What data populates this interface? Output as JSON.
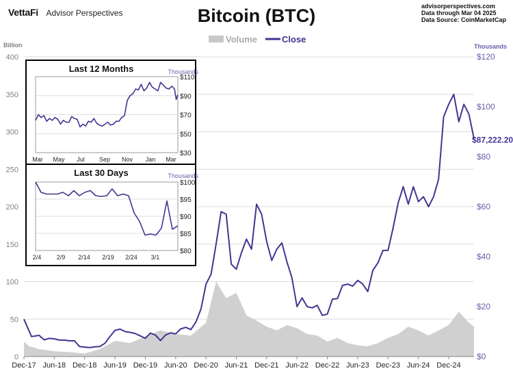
{
  "header": {
    "brand_logo": "VettaFi",
    "brand_name": "Advisor Perspectives",
    "title": "Bitcoin (BTC)",
    "source_site": "advisorperspectives.com",
    "source_date": "Data through  Mar 04 2025",
    "source_data": "Data Source:  CoinMarketCap"
  },
  "colors": {
    "close": "#3f3590",
    "volume": "#c8c8c8",
    "axis_left": "#808080",
    "axis_right": "#6a5fa8",
    "grid": "#dcdcdc"
  },
  "chart_data": [
    {
      "type": "area+line",
      "title": "Bitcoin (BTC)",
      "legend": [
        "Volume",
        "Close"
      ],
      "legend_position": "top-center",
      "y_left_label": "Billion",
      "y_left_ticks": [
        0,
        50,
        100,
        150,
        200,
        250,
        300,
        350,
        400
      ],
      "y_left_lim": [
        0,
        400
      ],
      "y_right_label": "Thousands",
      "y_right_ticks": [
        "$0",
        "$20",
        "$40",
        "$60",
        "$80",
        "$100",
        "$120"
      ],
      "y_right_lim": [
        0,
        120
      ],
      "x_ticks": [
        "Dec-17",
        "Jun-18",
        "Dec-18",
        "Jun-19",
        "Dec-19",
        "Jun-20",
        "Dec-20",
        "Jun-21",
        "Dec-21",
        "Jun-22",
        "Dec-22",
        "Jun-23",
        "Dec-23",
        "Jun-24",
        "Dec-24"
      ],
      "last_value_label": "$87,222.20",
      "series": [
        {
          "name": "Close",
          "axis": "right",
          "points": [
            [
              0,
              15
            ],
            [
              1.5,
              8.0
            ],
            [
              3,
              8.5
            ],
            [
              4,
              6.7
            ],
            [
              5,
              7.3
            ],
            [
              6,
              7.1
            ],
            [
              7,
              6.6
            ],
            [
              8,
              6.6
            ],
            [
              9,
              6.3
            ],
            [
              10,
              6.3
            ],
            [
              11,
              4.0
            ],
            [
              12,
              3.8
            ],
            [
              13,
              3.6
            ],
            [
              14,
              3.9
            ],
            [
              15,
              4.0
            ],
            [
              16,
              5.3
            ],
            [
              17,
              8.0
            ],
            [
              18,
              10.5
            ],
            [
              19,
              11.0
            ],
            [
              20,
              10.0
            ],
            [
              21,
              9.7
            ],
            [
              22,
              9.2
            ],
            [
              23,
              8.3
            ],
            [
              24,
              7.3
            ],
            [
              25,
              9.4
            ],
            [
              26,
              8.6
            ],
            [
              27,
              6.4
            ],
            [
              28,
              8.6
            ],
            [
              29,
              9.5
            ],
            [
              30,
              9.1
            ],
            [
              31,
              11.1
            ],
            [
              32,
              11.7
            ],
            [
              33,
              10.8
            ],
            [
              34,
              13.8
            ],
            [
              35,
              19.0
            ],
            [
              36,
              29.0
            ],
            [
              37,
              33.0
            ],
            [
              38,
              45.0
            ],
            [
              39,
              58.0
            ],
            [
              40,
              57.0
            ],
            [
              41,
              37.0
            ],
            [
              42,
              35.0
            ],
            [
              43,
              41.5
            ],
            [
              44,
              47.0
            ],
            [
              45,
              43.0
            ],
            [
              46,
              61.0
            ],
            [
              47,
              57.0
            ],
            [
              48,
              46.0
            ],
            [
              49,
              38.5
            ],
            [
              50,
              43.0
            ],
            [
              51,
              45.5
            ],
            [
              52,
              38.0
            ],
            [
              53,
              31.5
            ],
            [
              54,
              20.0
            ],
            [
              55,
              23.5
            ],
            [
              56,
              20.0
            ],
            [
              57,
              19.5
            ],
            [
              58,
              20.5
            ],
            [
              59,
              16.5
            ],
            [
              60,
              17.0
            ],
            [
              61,
              23.0
            ],
            [
              62,
              23.2
            ],
            [
              63,
              28.5
            ],
            [
              64,
              29.0
            ],
            [
              65,
              28.2
            ],
            [
              66,
              30.5
            ],
            [
              67,
              29.0
            ],
            [
              68,
              26.0
            ],
            [
              69,
              34.5
            ],
            [
              70,
              37.5
            ],
            [
              71,
              42.5
            ],
            [
              72,
              42.5
            ],
            [
              73,
              51.5
            ],
            [
              74,
              61.5
            ],
            [
              75,
              68.0
            ],
            [
              76,
              61.0
            ],
            [
              77,
              68.0
            ],
            [
              78,
              62.0
            ],
            [
              79,
              64.0
            ],
            [
              80,
              60.0
            ],
            [
              81,
              64.0
            ],
            [
              82,
              71.0
            ],
            [
              83,
              96.0
            ],
            [
              84,
              101.0
            ],
            [
              85,
              105.0
            ],
            [
              86,
              94.0
            ],
            [
              87,
              101.0
            ],
            [
              88,
              97.0
            ],
            [
              89,
              87.2
            ]
          ],
          "x_note": "month index from Dec-17 (0) to Mar-25 (89)"
        },
        {
          "name": "Volume",
          "axis": "left",
          "points": [
            [
              0,
              20
            ],
            [
              1,
              14
            ],
            [
              3,
              10
            ],
            [
              6,
              7
            ],
            [
              9,
              6
            ],
            [
              12,
              4
            ],
            [
              15,
              10
            ],
            [
              18,
              21
            ],
            [
              21,
              18
            ],
            [
              24,
              27
            ],
            [
              27,
              35
            ],
            [
              30,
              30
            ],
            [
              33,
              28
            ],
            [
              36,
              45
            ],
            [
              38,
              100
            ],
            [
              40,
              78
            ],
            [
              42,
              85
            ],
            [
              44,
              55
            ],
            [
              46,
              48
            ],
            [
              48,
              40
            ],
            [
              50,
              35
            ],
            [
              52,
              42
            ],
            [
              54,
              38
            ],
            [
              56,
              30
            ],
            [
              58,
              28
            ],
            [
              60,
              20
            ],
            [
              62,
              25
            ],
            [
              64,
              18
            ],
            [
              66,
              15
            ],
            [
              68,
              14
            ],
            [
              70,
              18
            ],
            [
              72,
              25
            ],
            [
              74,
              30
            ],
            [
              76,
              40
            ],
            [
              78,
              35
            ],
            [
              80,
              28
            ],
            [
              82,
              35
            ],
            [
              84,
              42
            ],
            [
              86,
              60
            ],
            [
              88,
              45
            ],
            [
              89,
              40
            ]
          ]
        }
      ]
    },
    {
      "type": "line",
      "title": "Last 12 Months",
      "y_label": "Thousands",
      "y_ticks": [
        "$110",
        "$90",
        "$70",
        "$50",
        "$30"
      ],
      "y_lim": [
        30,
        110
      ],
      "x_ticks": [
        "Mar",
        "May",
        "Jul",
        "Sep",
        "Nov",
        "Jan",
        "Mar"
      ],
      "points": [
        [
          0,
          64
        ],
        [
          0.5,
          70
        ],
        [
          1,
          67
        ],
        [
          1.5,
          69
        ],
        [
          2,
          63
        ],
        [
          2.5,
          66
        ],
        [
          3,
          64
        ],
        [
          3.5,
          67
        ],
        [
          4,
          65
        ],
        [
          4.5,
          60
        ],
        [
          5,
          64
        ],
        [
          5.5,
          62
        ],
        [
          6,
          62
        ],
        [
          6.5,
          68
        ],
        [
          7,
          66
        ],
        [
          7.5,
          65
        ],
        [
          8,
          57
        ],
        [
          8.5,
          60
        ],
        [
          9,
          58
        ],
        [
          9.5,
          63
        ],
        [
          10,
          62
        ],
        [
          10.5,
          66
        ],
        [
          11,
          61
        ],
        [
          11.5,
          59
        ],
        [
          12,
          58
        ],
        [
          12.5,
          60
        ],
        [
          13,
          62
        ],
        [
          13.5,
          59
        ],
        [
          14,
          60
        ],
        [
          14.5,
          63
        ],
        [
          15,
          63
        ],
        [
          15.5,
          67
        ],
        [
          16,
          69
        ],
        [
          16.5,
          85
        ],
        [
          17,
          90
        ],
        [
          17.5,
          92
        ],
        [
          18,
          97
        ],
        [
          18.5,
          96
        ],
        [
          19,
          102
        ],
        [
          19.5,
          95
        ],
        [
          20,
          98
        ],
        [
          20.5,
          104
        ],
        [
          21,
          99
        ],
        [
          21.5,
          97
        ],
        [
          22,
          95
        ],
        [
          22.5,
          104
        ],
        [
          23,
          101
        ],
        [
          23.5,
          98
        ],
        [
          24,
          97
        ],
        [
          24.5,
          100
        ],
        [
          25,
          97
        ],
        [
          25.3,
          86
        ],
        [
          25.6,
          91
        ]
      ],
      "x_note": "half-month index from Mar-24 (0) to Mar-25 (~25.6)"
    },
    {
      "type": "line",
      "title": "Last 30 Days",
      "y_label": "Thousands",
      "y_ticks": [
        "$100",
        "$95",
        "$90",
        "$85",
        "$80"
      ],
      "y_lim": [
        80,
        100
      ],
      "x_ticks": [
        "2/4",
        "2/9",
        "2/14",
        "2/19",
        "2/24",
        "3/1"
      ],
      "points": [
        [
          0,
          100
        ],
        [
          1,
          97
        ],
        [
          2,
          96.5
        ],
        [
          3,
          96.5
        ],
        [
          4,
          96.5
        ],
        [
          5,
          97
        ],
        [
          6,
          96
        ],
        [
          7,
          97.5
        ],
        [
          8,
          96
        ],
        [
          9,
          97
        ],
        [
          10,
          97.5
        ],
        [
          11,
          96
        ],
        [
          12,
          95.8
        ],
        [
          13,
          96
        ],
        [
          14,
          98
        ],
        [
          15,
          96
        ],
        [
          16,
          96.5
        ],
        [
          17,
          96
        ],
        [
          18,
          91
        ],
        [
          19,
          88.5
        ],
        [
          20,
          84.5
        ],
        [
          21,
          84.8
        ],
        [
          22,
          84.5
        ],
        [
          23,
          86.5
        ],
        [
          24,
          94.5
        ],
        [
          25,
          86.2
        ],
        [
          26,
          87.2
        ]
      ],
      "x_note": "day index from 2/4 (0) to 3/4 (26)"
    }
  ]
}
